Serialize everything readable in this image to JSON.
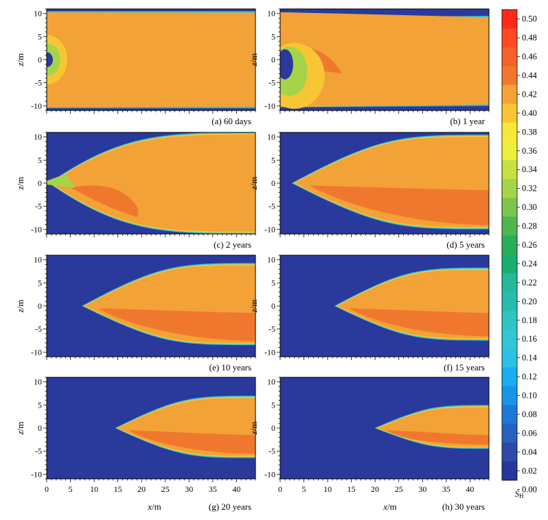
{
  "chart_data": {
    "type": "heatmap",
    "colorbar": {
      "label": "S",
      "label_sub": "H",
      "range": [
        0.0,
        0.5
      ],
      "ticks": [
        "0.50",
        "0.48",
        "0.46",
        "0.44",
        "0.42",
        "0.40",
        "0.38",
        "0.36",
        "0.34",
        "0.32",
        "0.30",
        "0.28",
        "0.26",
        "0.24",
        "0.22",
        "0.20",
        "0.18",
        "0.16",
        "0.14",
        "0.12",
        "0.10",
        "0.08",
        "0.06",
        "0.04",
        "0.02",
        "0.00"
      ],
      "colors": [
        "#ff2a1a",
        "#ff4a22",
        "#f6602a",
        "#f0782e",
        "#f2a236",
        "#f8c634",
        "#f8e83a",
        "#ecf03c",
        "#c8e040",
        "#a6d448",
        "#7cc64e",
        "#4cb852",
        "#2aae5a",
        "#18b070",
        "#26b89a",
        "#28bcae",
        "#2ec4c4",
        "#34c6d4",
        "#2cc0e4",
        "#18aef0",
        "#1a94e8",
        "#1e78d6",
        "#2860c0",
        "#2e4aa8",
        "#26369a"
      ],
      "background": "#2a3a9c"
    },
    "x_axis": {
      "label": "x",
      "unit": "/m",
      "range": [
        0,
        44
      ],
      "ticks": [
        "0",
        "5",
        "10",
        "15",
        "20",
        "25",
        "30",
        "35",
        "40"
      ]
    },
    "z_axis": {
      "label": "z",
      "unit": "/m",
      "range": [
        -11,
        11
      ],
      "ticks": [
        "10",
        "5",
        "0",
        "-5",
        "-10"
      ]
    },
    "panels": [
      {
        "caption": "(a) 60 days",
        "front_x": 0.0,
        "base_value": 0.42,
        "high_value": 0.44
      },
      {
        "caption": "(b) 1 year",
        "front_x": 0.5,
        "base_value": 0.42,
        "high_value": 0.44
      },
      {
        "caption": "(c) 2 years",
        "front_x": 1.0,
        "base_value": 0.42,
        "high_value": 0.44
      },
      {
        "caption": "(d) 5 years",
        "front_x": 3.0,
        "base_value": 0.42,
        "high_value": 0.44
      },
      {
        "caption": "(e) 10 years",
        "front_x": 8.0,
        "base_value": 0.42,
        "high_value": 0.44
      },
      {
        "caption": "(f) 15 years",
        "front_x": 12.0,
        "base_value": 0.42,
        "high_value": 0.44
      },
      {
        "caption": "(g) 20 years",
        "front_x": 15.0,
        "base_value": 0.42,
        "high_value": 0.44
      },
      {
        "caption": "(h) 30 years",
        "front_x": 20.5,
        "base_value": 0.42,
        "high_value": 0.44
      }
    ]
  }
}
